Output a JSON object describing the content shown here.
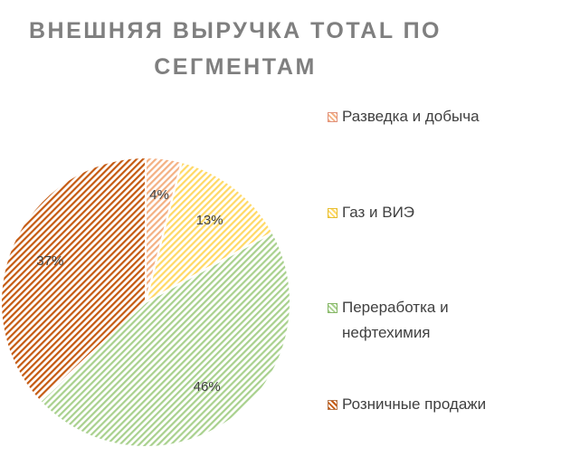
{
  "chart_data": {
    "type": "pie",
    "title": "ВНЕШНЯЯ ВЫРУЧКА TOTAL ПО СЕГМЕНТАМ",
    "title_lines": [
      "ВНЕШНЯЯ ВЫРУЧКА TOTAL ПО",
      "СЕГМЕНТАМ"
    ],
    "legend_position": "right",
    "slices": [
      {
        "name": "Разведка и добыча",
        "value": 4,
        "label": "4%",
        "color": "#f4b183",
        "stroke": "#e0907a"
      },
      {
        "name": "Газ и ВИЭ",
        "value": 13,
        "label": "13%",
        "color": "#ffd966",
        "stroke": "#e6bd2e"
      },
      {
        "name": "Переработка и нефтехимия",
        "value": 46,
        "label": "46%",
        "color": "#a9d18e",
        "stroke": "#84b565"
      },
      {
        "name": "Розничные продажи",
        "value": 37,
        "label": "37%",
        "color": "#c55a11",
        "stroke": "#b4784f"
      }
    ]
  },
  "legend": {
    "items": [
      {
        "lines": [
          "Разведка и добыча"
        ]
      },
      {
        "lines": [
          "Газ и ВИЭ"
        ]
      },
      {
        "lines": [
          "Переработка и",
          "нефтехимия"
        ]
      },
      {
        "lines": [
          "Розничные продажи"
        ]
      }
    ]
  }
}
